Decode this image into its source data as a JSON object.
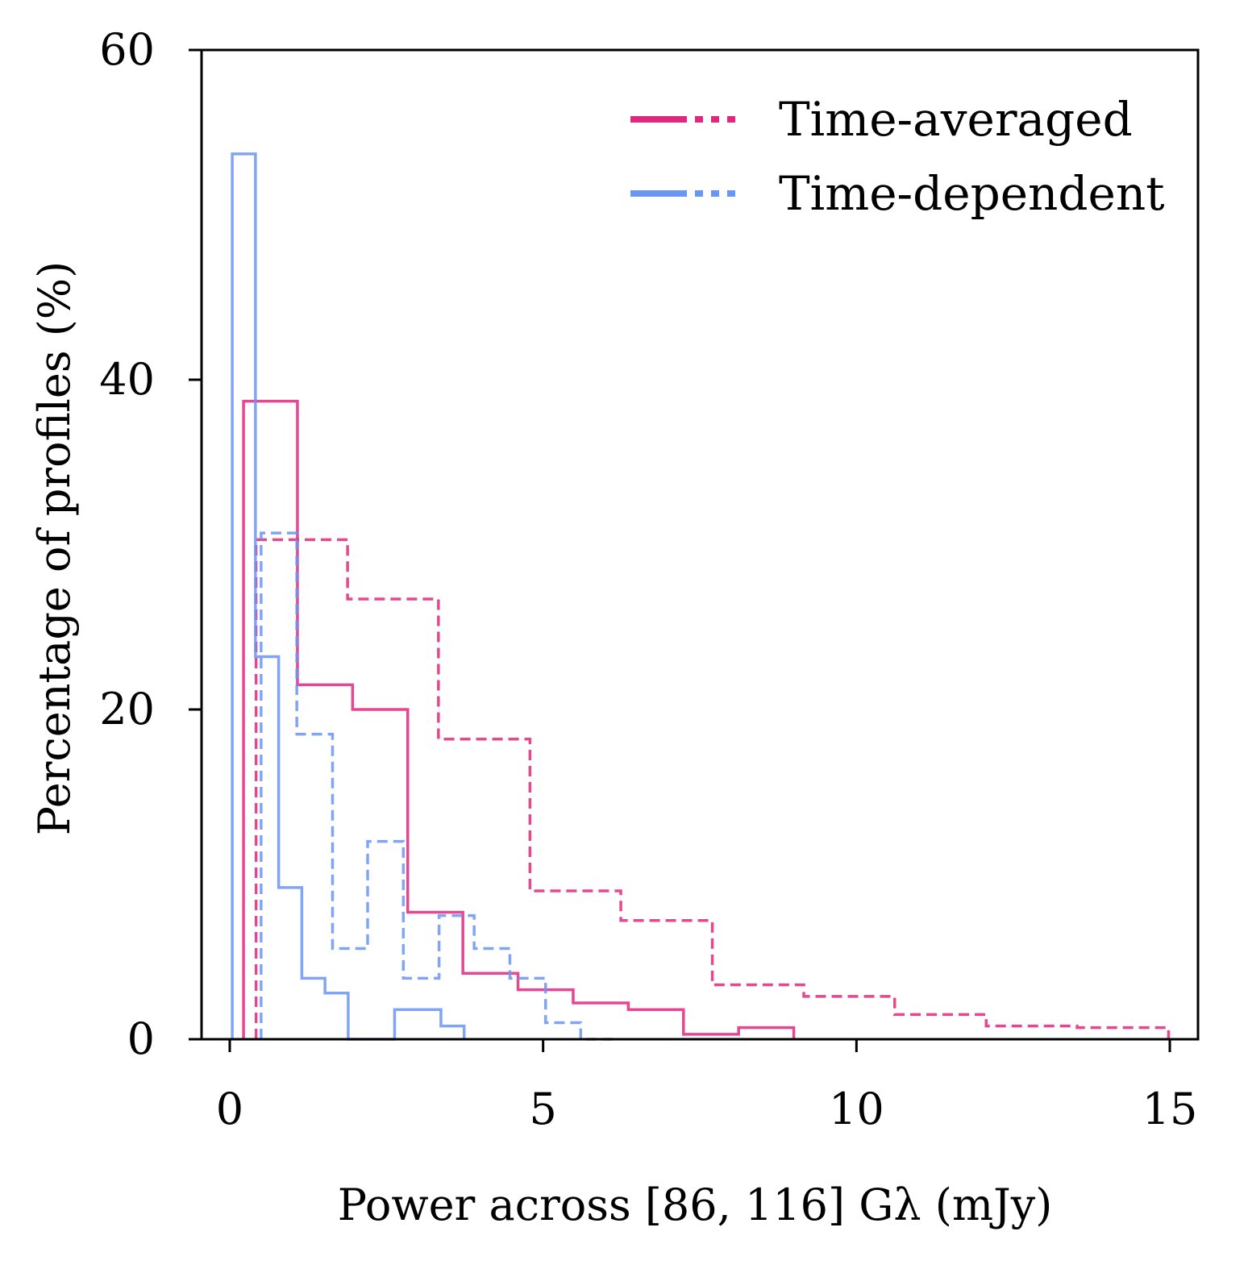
{
  "chart_data": {
    "type": "histogram-step",
    "xlabel": "Power across [86, 116] Gλ (mJy)",
    "ylabel": "Percentage of profiles (%)",
    "xlim": [
      -0.45,
      15.45
    ],
    "ylim": [
      0,
      60
    ],
    "xticks": [
      0,
      5,
      10,
      15
    ],
    "yticks": [
      0,
      20,
      40,
      60
    ],
    "legend": {
      "position": "top-right",
      "entries": [
        {
          "label": "Time-averaged",
          "color": "#e0287e"
        },
        {
          "label": "Time-dependent",
          "color": "#6b95f2"
        }
      ]
    },
    "series": [
      {
        "name": "Time-averaged (solid)",
        "group": "Time-averaged",
        "color": "#e0287e",
        "linestyle": "solid",
        "edges": [
          0.22,
          1.08,
          1.96,
          2.84,
          3.72,
          4.6,
          5.48,
          6.36,
          7.24,
          8.12,
          9.0
        ],
        "values": [
          38.7,
          21.5,
          20.0,
          7.7,
          4.0,
          3.0,
          2.2,
          1.8,
          0.3,
          0.7
        ]
      },
      {
        "name": "Time-averaged (dashed)",
        "group": "Time-averaged",
        "color": "#e0287e",
        "linestyle": "dashed",
        "edges": [
          0.42,
          1.88,
          3.33,
          4.79,
          6.24,
          7.7,
          9.16,
          10.61,
          12.07,
          13.52,
          14.98
        ],
        "values": [
          30.3,
          26.7,
          18.2,
          9.0,
          7.2,
          3.3,
          2.6,
          1.5,
          0.8,
          0.7
        ]
      },
      {
        "name": "Time-dependent (solid)",
        "group": "Time-dependent",
        "color": "#6b95f2",
        "linestyle": "solid",
        "edges": [
          0.04,
          0.41,
          0.78,
          1.15,
          1.52,
          1.89,
          2.26,
          2.63,
          3.0,
          3.37,
          3.74
        ],
        "values": [
          53.7,
          23.2,
          9.2,
          3.7,
          2.8,
          0.0,
          0.0,
          1.8,
          1.8,
          0.8
        ]
      },
      {
        "name": "Time-dependent (dashed)",
        "group": "Time-dependent",
        "color": "#6b95f2",
        "linestyle": "dashed",
        "edges": [
          0.5,
          1.07,
          1.64,
          2.2,
          2.77,
          3.34,
          3.9,
          4.47,
          5.04,
          5.6,
          6.17
        ],
        "values": [
          30.7,
          18.5,
          5.5,
          12.0,
          3.7,
          7.5,
          5.5,
          3.7,
          1.0,
          0.0
        ]
      }
    ]
  }
}
